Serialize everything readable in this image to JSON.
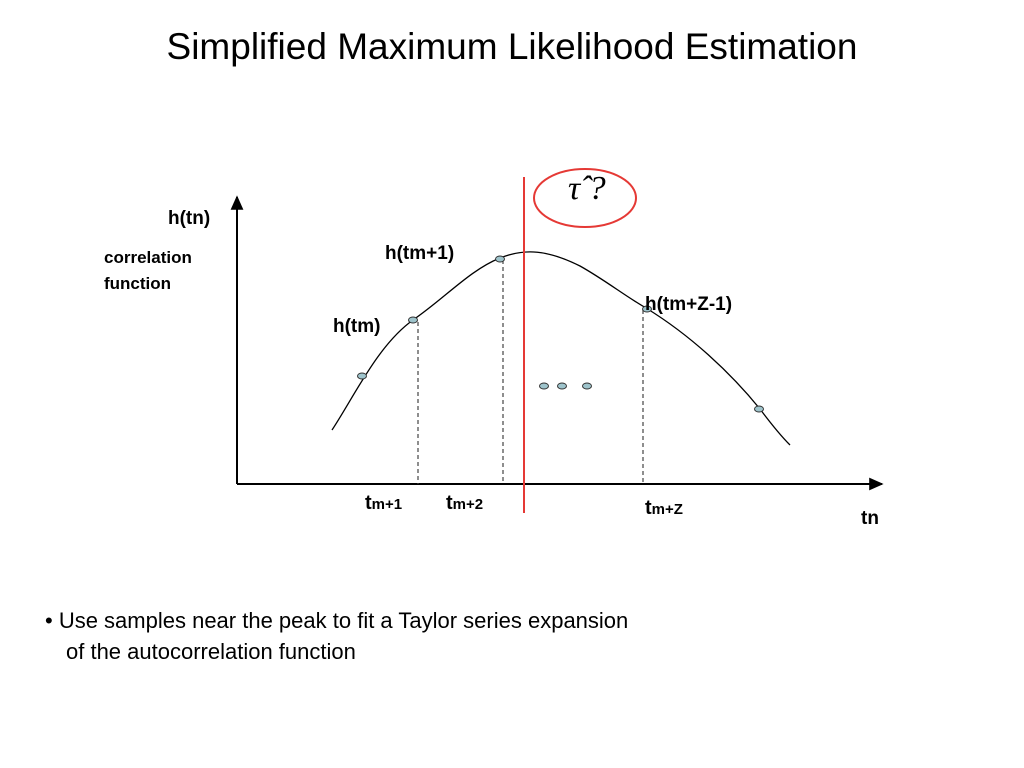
{
  "title": "Simplified Maximum Likelihood Estimation",
  "axes": {
    "y_label": "h(tn)",
    "y_sublabel_line1": "correlation",
    "y_sublabel_line2": "function",
    "x_label": "tn"
  },
  "points": {
    "h_tm": "h(tm)",
    "h_tm1": "h(tm+1)",
    "h_tmz1": "h(tm+Z-1)"
  },
  "ticks": {
    "t1_base": "t",
    "t1_sub": "m+1",
    "t2_base": "t",
    "t2_sub": "m+2",
    "t3_base": "t",
    "t3_sub": "m+Z"
  },
  "estimate": {
    "symbol": "τ̂ ?",
    "highlight_color": "#e03a3a"
  },
  "bullet": {
    "line1": "• Use samples near the peak to fit a Taylor series expansion",
    "line2": "of the autocorrelation function"
  },
  "colors": {
    "sample_fill": "#9ec4cc",
    "red_line": "#e53935"
  }
}
